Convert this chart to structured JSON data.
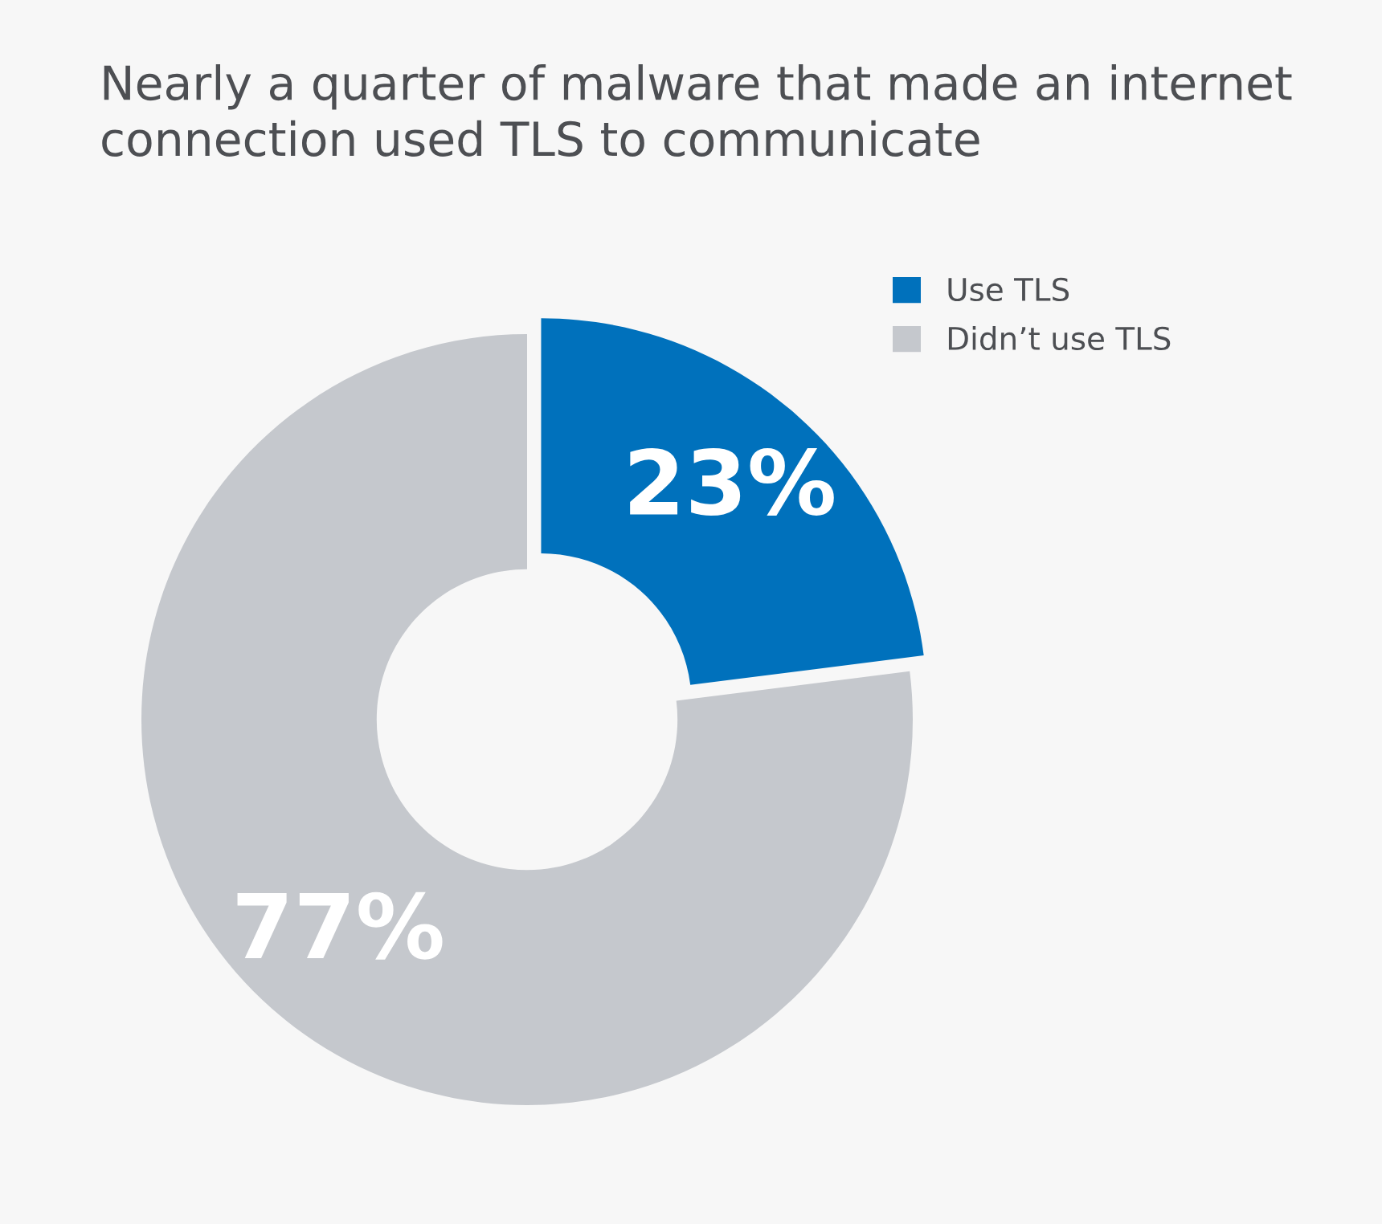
{
  "chart_data": {
    "type": "donut",
    "title": "Nearly a quarter of malware that made an internet connection used TLS to communicate",
    "categories": [
      "Use TLS",
      "Didn’t use TLS"
    ],
    "values": [
      23,
      77
    ],
    "colors": [
      "#0071bc",
      "#c5c8cd"
    ],
    "value_labels": [
      "23%",
      "77%"
    ],
    "legend": "top right"
  }
}
